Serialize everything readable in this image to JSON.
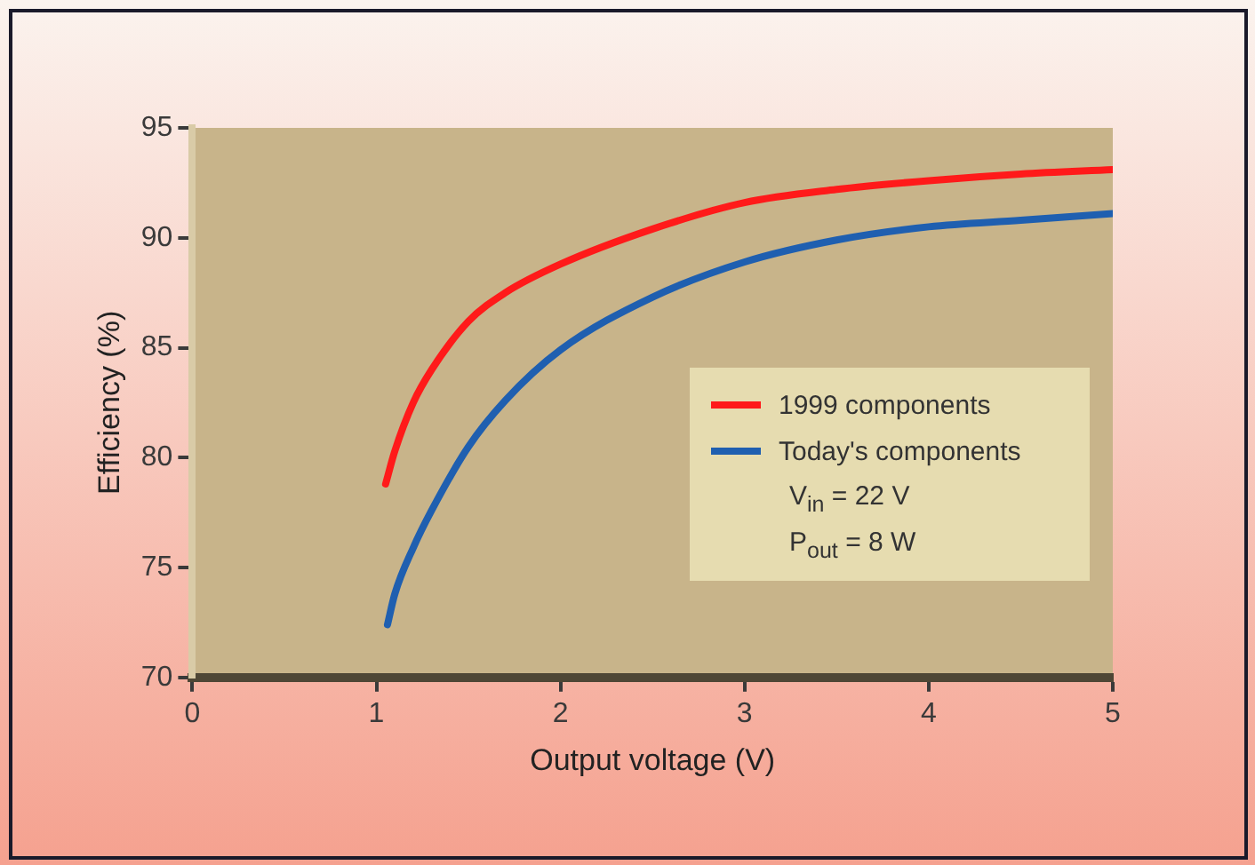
{
  "chart_data": {
    "type": "line",
    "xlabel": "Output voltage (V)",
    "ylabel": "Efficiency (%)",
    "xlim": [
      0,
      5
    ],
    "xticks": [
      0,
      1,
      2,
      3,
      4,
      5
    ],
    "ylim": [
      70,
      95
    ],
    "yticks": [
      70,
      75,
      80,
      85,
      90,
      95
    ],
    "grid": false,
    "legend": "right",
    "marker": "none",
    "line_style": "solid",
    "series": [
      {
        "name": "1999 components",
        "color": "#ff1a1a",
        "x": [
          1.05,
          1.1,
          1.2,
          1.3,
          1.5,
          1.7,
          2,
          2.5,
          3,
          3.5,
          4,
          4.5,
          5
        ],
        "values": [
          78.8,
          80.3,
          82.5,
          84,
          86.2,
          87.5,
          88.8,
          90.4,
          91.6,
          92.2,
          92.6,
          92.9,
          93.1
        ]
      },
      {
        "name": "Today's components",
        "color": "#1f5fb0",
        "x": [
          1.06,
          1.1,
          1.2,
          1.3,
          1.5,
          1.7,
          2,
          2.5,
          3,
          3.5,
          4,
          4.5,
          5
        ],
        "values": [
          72.4,
          73.8,
          75.9,
          77.6,
          80.5,
          82.6,
          84.9,
          87.3,
          88.9,
          89.9,
          90.5,
          90.8,
          91.1
        ]
      }
    ],
    "annotations": [
      "V$_{in}$ = 22 V",
      "P$_{out}$ = 8 W"
    ]
  }
}
